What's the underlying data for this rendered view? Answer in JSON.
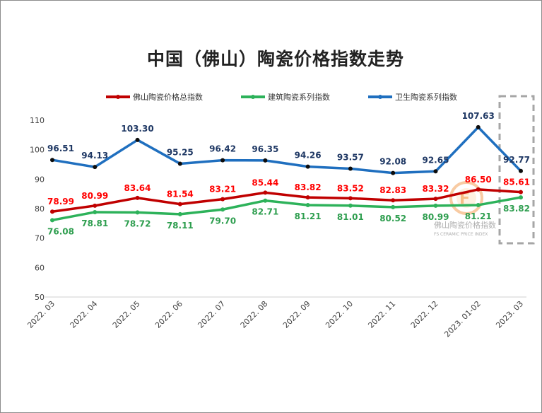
{
  "chart_data": {
    "type": "line",
    "title": "中国（佛山）陶瓷价格指数走势",
    "categories": [
      "2022. 03",
      "2022. 04",
      "2022. 05",
      "2022. 06",
      "2022. 07",
      "2022. 08",
      "2022. 09",
      "2022. 10",
      "2022. 11",
      "2022. 12",
      "2023. 01-02",
      "2023. 03"
    ],
    "ylim": [
      50,
      110
    ],
    "yticks": [
      "50",
      "60",
      "70",
      "80",
      "90",
      "100",
      "110"
    ],
    "grid": false,
    "legend_position": "top",
    "series": [
      {
        "name": "佛山陶瓷价格总指数",
        "color": "#c00000",
        "label_color": "#ff0000",
        "values": [
          78.99,
          80.99,
          83.64,
          81.54,
          83.21,
          85.44,
          83.82,
          83.52,
          82.83,
          83.32,
          86.5,
          85.61
        ],
        "labels": [
          "78.99",
          "80.99",
          "83.64",
          "81.54",
          "83.21",
          "85.44",
          "83.82",
          "83.52",
          "82.83",
          "83.32",
          "86.50",
          "85.61"
        ]
      },
      {
        "name": "建筑陶瓷系列指数",
        "color": "#2db25a",
        "label_color": "#2e9e4f",
        "values": [
          76.08,
          78.81,
          78.72,
          78.11,
          79.7,
          82.71,
          81.21,
          81.01,
          80.52,
          80.99,
          81.21,
          83.82
        ],
        "labels": [
          "76.08",
          "78.81",
          "78.72",
          "78.11",
          "79.70",
          "82.71",
          "81.21",
          "81.01",
          "80.52",
          "80.99",
          "81.21",
          "83.82"
        ]
      },
      {
        "name": "卫生陶瓷系列指数",
        "color": "#1f6fbf",
        "label_color": "#1f3864",
        "values": [
          96.51,
          94.13,
          103.3,
          95.25,
          96.42,
          96.35,
          94.26,
          93.57,
          92.08,
          92.65,
          107.63,
          92.77
        ],
        "labels": [
          "96.51",
          "94.13",
          "103.30",
          "95.25",
          "96.42",
          "96.35",
          "94.26",
          "93.57",
          "92.08",
          "92.65",
          "107.63",
          "92.77"
        ]
      }
    ],
    "annotation": "dashed-box-highlight-last-period"
  },
  "watermark": {
    "line1": "佛山陶瓷价格指数",
    "line2": "FS CERAMIC PRICE INDEX"
  }
}
